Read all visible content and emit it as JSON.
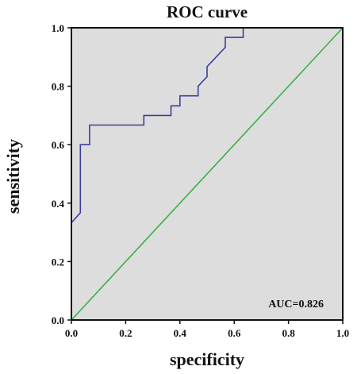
{
  "chart_data": {
    "type": "line",
    "title": "ROC curve",
    "xlabel": "specificity",
    "ylabel": "sensitivity",
    "xlim": [
      0,
      1
    ],
    "ylim": [
      0,
      1
    ],
    "xticks": [
      "0.0",
      "0.2",
      "0.4",
      "0.6",
      "0.8",
      "1.0"
    ],
    "yticks": [
      "0.0",
      "0.2",
      "0.4",
      "0.6",
      "0.8",
      "1.0"
    ],
    "grid": false,
    "background": "#dddddd",
    "annotation": "AUC=0.826",
    "series": [
      {
        "color": "#3a3f9a",
        "x": [
          0.0,
          0.0,
          0.033,
          0.033,
          0.067,
          0.067,
          0.267,
          0.267,
          0.367,
          0.367,
          0.4,
          0.4,
          0.467,
          0.467,
          0.5,
          0.5,
          0.567,
          0.567,
          0.633,
          0.633,
          1.0
        ],
        "y": [
          0.0,
          0.333,
          0.367,
          0.6,
          0.6,
          0.667,
          0.667,
          0.7,
          0.7,
          0.733,
          0.733,
          0.767,
          0.767,
          0.8,
          0.833,
          0.867,
          0.933,
          0.967,
          0.967,
          1.0,
          1.0
        ]
      },
      {
        "color": "#3cb043",
        "x": [
          0,
          1
        ],
        "y": [
          0,
          1
        ]
      }
    ]
  }
}
